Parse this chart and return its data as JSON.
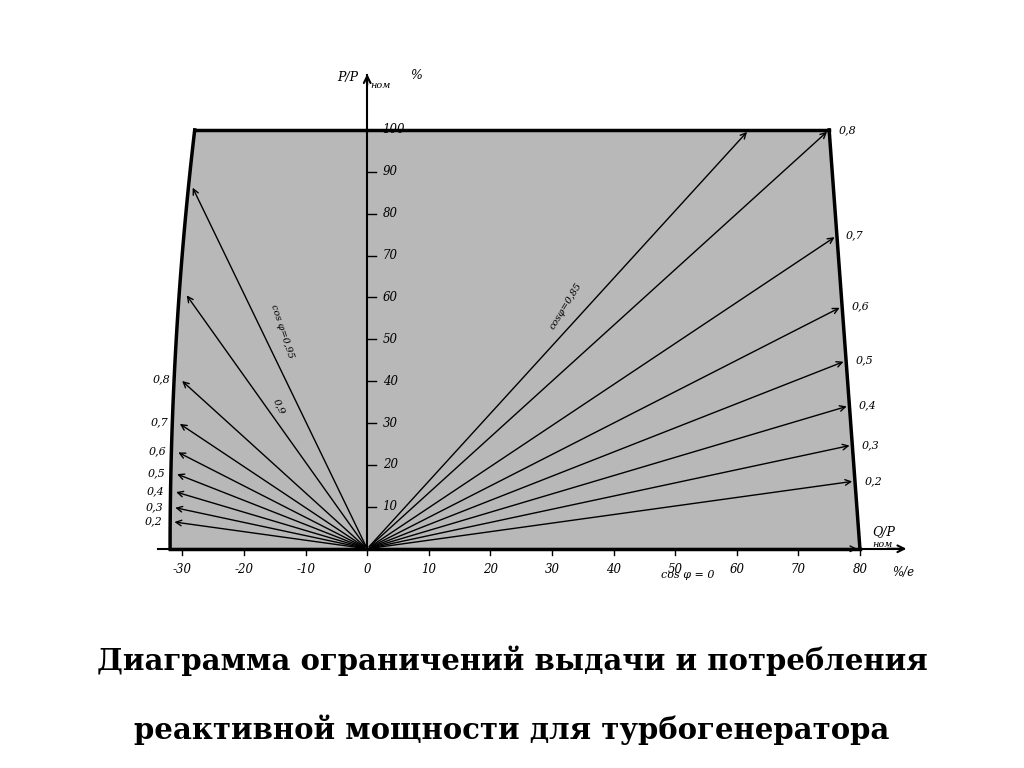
{
  "background_color": "#c8c8c8",
  "white_bg": "#ffffff",
  "gray_bg": "#c0c0c0",
  "title_line1": "Диаграмма ограничений выдачи и потребления",
  "title_line2": "реактивной мощности для турбогенератора",
  "title_fontsize": 21,
  "xlim": [
    -38,
    95
  ],
  "ylim": [
    -12,
    120
  ],
  "x_ticks": [
    -30,
    -20,
    -10,
    0,
    10,
    20,
    30,
    40,
    50,
    60,
    70,
    80
  ],
  "y_ticks": [
    10,
    20,
    30,
    40,
    50,
    60,
    70,
    80,
    90,
    100
  ],
  "boundary_pts": [
    [
      -32,
      0
    ],
    [
      -28,
      100
    ],
    [
      75,
      100
    ],
    [
      80,
      0
    ]
  ],
  "right_cos": [
    0.85,
    0.8,
    0.7,
    0.6,
    0.5,
    0.4,
    0.3,
    0.2,
    0.0
  ],
  "right_labels": [
    "cosφ=0,85",
    "0,8",
    "0,7",
    "0,6",
    "0,5",
    "0,4",
    "0,3",
    "0,2",
    "cos φ = 0"
  ],
  "left_cos": [
    0.95,
    0.9,
    0.8,
    0.7,
    0.6,
    0.5,
    0.4,
    0.3,
    0.2
  ],
  "left_labels": [
    "cos φ=0,95",
    "0,9",
    "0,8",
    "0,7",
    "0,6",
    "0,5",
    "0,4",
    "0,3",
    "0,2"
  ]
}
